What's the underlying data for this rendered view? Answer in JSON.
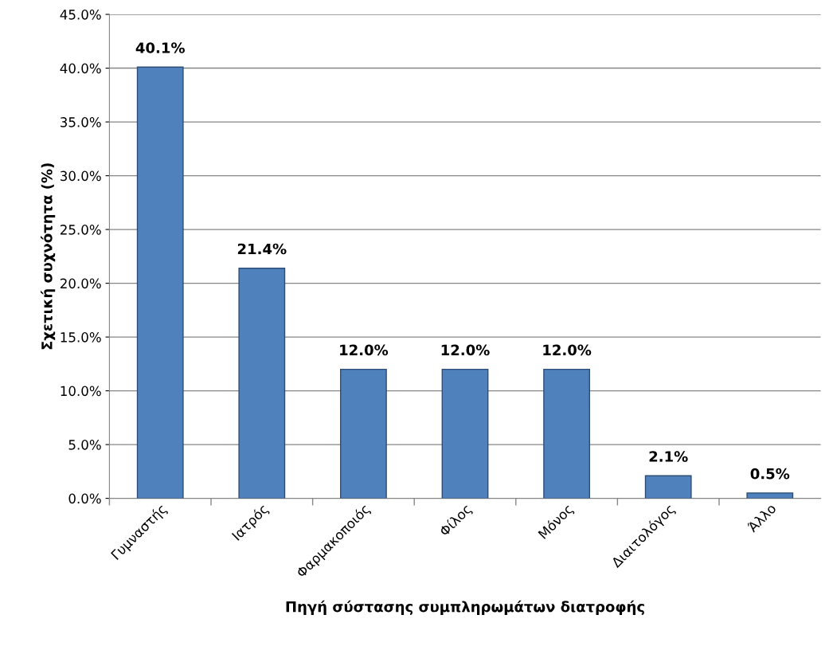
{
  "chart_data": {
    "type": "bar",
    "xlabel": "Πηγή σύστασης συμπληρωμάτων διατροφής",
    "ylabel": "Σχετική συχνότητα (%)",
    "categories": [
      "Γυμναστής",
      "Ιατρός",
      "Φαρμακοποιός",
      "Φίλος",
      "Μόνος",
      "Διαιτολόγος",
      "Άλλο"
    ],
    "values": [
      40.1,
      21.4,
      12.0,
      12.0,
      12.0,
      2.1,
      0.5
    ],
    "value_labels": [
      "40.1%",
      "21.4%",
      "12.0%",
      "12.0%",
      "12.0%",
      "2.1%",
      "0.5%"
    ],
    "color": "#4f81bd",
    "ylim": [
      0,
      45
    ],
    "yticks": [
      {
        "value": 0,
        "label": "0.0%"
      },
      {
        "value": 5,
        "label": "5.0%"
      },
      {
        "value": 10,
        "label": "10.0%"
      },
      {
        "value": 15,
        "label": "15.0%"
      },
      {
        "value": 20,
        "label": "20.0%"
      },
      {
        "value": 25,
        "label": "25.0%"
      },
      {
        "value": 30,
        "label": "30.0%"
      },
      {
        "value": 35,
        "label": "35.0%"
      },
      {
        "value": 40,
        "label": "40.0%"
      },
      {
        "value": 45,
        "label": "45.0%"
      }
    ],
    "grid": "y"
  }
}
